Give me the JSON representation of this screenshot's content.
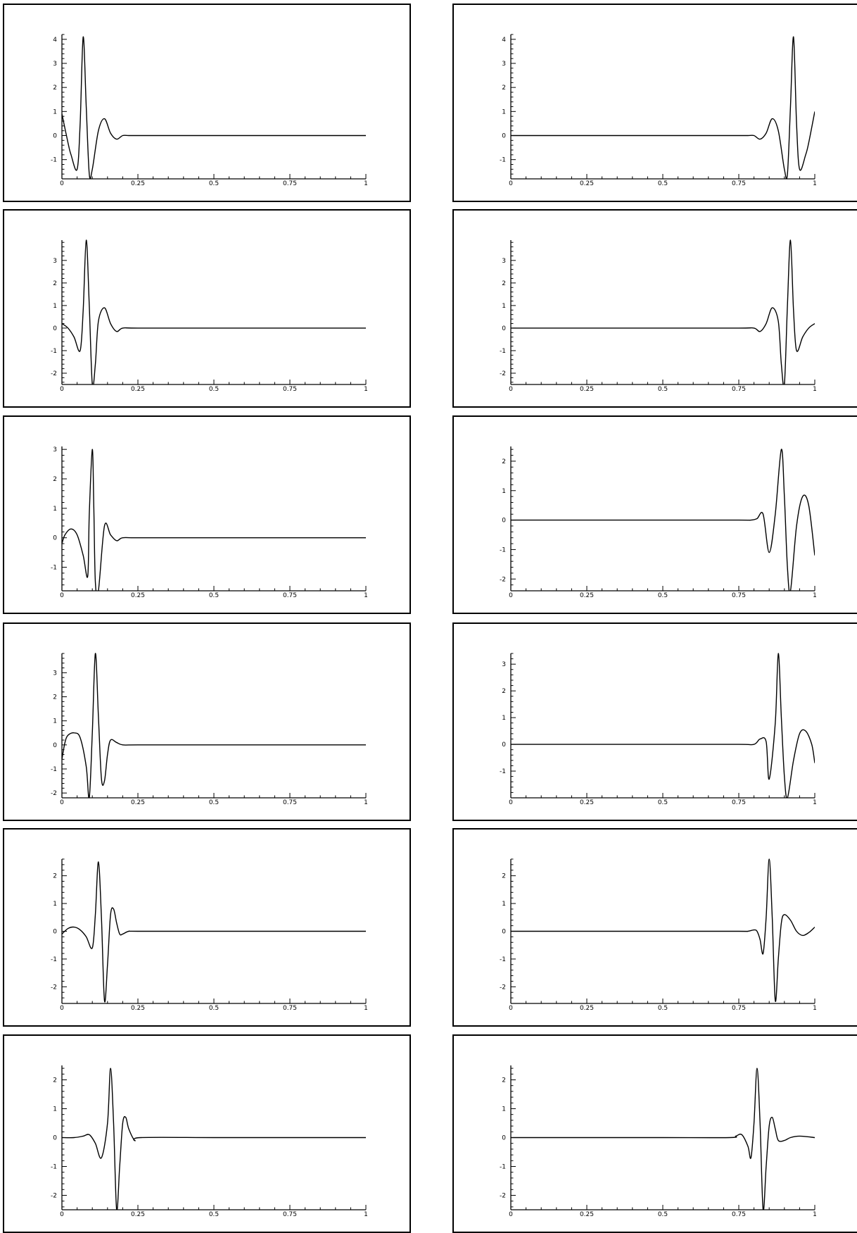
{
  "chart_data": [
    {
      "type": "line",
      "panel": "left-1",
      "xlim": [
        0,
        1
      ],
      "ylim": [
        -1.8,
        4.2
      ],
      "x_ticks": [
        "0",
        "0.25",
        "0.5",
        "0.75",
        "1"
      ],
      "y_ticks": [
        "-1",
        "0",
        "1",
        "2",
        "3",
        "4"
      ],
      "series": [
        {
          "x": [
            0,
            0.02,
            0.03,
            0.05,
            0.06,
            0.07,
            0.08,
            0.09,
            0.1,
            0.12,
            0.14,
            0.16,
            0.18,
            0.2,
            0.22,
            0.25,
            0.5,
            0.75,
            1
          ],
          "y": [
            0.9,
            -0.3,
            -0.8,
            -1.4,
            0.5,
            4.1,
            1.2,
            -1.6,
            -1.4,
            0.2,
            0.7,
            0.1,
            -0.15,
            0.0,
            0.0,
            0.0,
            0.0,
            0.0,
            0.0
          ]
        }
      ]
    },
    {
      "type": "line",
      "panel": "right-1",
      "xlim": [
        0,
        1
      ],
      "ylim": [
        -1.8,
        4.2
      ],
      "x_ticks": [
        "0",
        "0.25",
        "0.5",
        "0.75",
        "1"
      ],
      "y_ticks": [
        "-1",
        "0",
        "1",
        "2",
        "3",
        "4"
      ],
      "series": [
        {
          "x": [
            0,
            0.25,
            0.5,
            0.75,
            0.78,
            0.8,
            0.82,
            0.84,
            0.86,
            0.88,
            0.9,
            0.91,
            0.92,
            0.93,
            0.94,
            0.95,
            0.97,
            0.98,
            1
          ],
          "y": [
            0.0,
            0.0,
            0.0,
            0.0,
            0.0,
            0.0,
            -0.15,
            0.1,
            0.7,
            0.2,
            -1.4,
            -1.6,
            1.2,
            4.1,
            0.5,
            -1.4,
            -0.8,
            -0.3,
            1.0
          ]
        }
      ]
    },
    {
      "type": "line",
      "panel": "left-2",
      "xlim": [
        0,
        1
      ],
      "ylim": [
        -2.5,
        3.9
      ],
      "x_ticks": [
        "0",
        "0.25",
        "0.5",
        "0.75",
        "1"
      ],
      "y_ticks": [
        "-2",
        "-1",
        "0",
        "1",
        "2",
        "3"
      ],
      "series": [
        {
          "x": [
            0,
            0.02,
            0.04,
            0.06,
            0.07,
            0.08,
            0.09,
            0.1,
            0.11,
            0.12,
            0.14,
            0.16,
            0.18,
            0.2,
            0.25,
            0.5,
            0.75,
            1
          ],
          "y": [
            0.2,
            0.0,
            -0.4,
            -1.0,
            0.8,
            3.9,
            1.0,
            -2.5,
            -1.6,
            0.3,
            0.9,
            0.2,
            -0.15,
            0.0,
            0.0,
            0.0,
            0.0,
            0.0
          ]
        }
      ]
    },
    {
      "type": "line",
      "panel": "right-2",
      "xlim": [
        0,
        1
      ],
      "ylim": [
        -2.5,
        3.9
      ],
      "x_ticks": [
        "0",
        "0.25",
        "0.5",
        "0.75",
        "1"
      ],
      "y_ticks": [
        "-2",
        "-1",
        "0",
        "1",
        "2",
        "3"
      ],
      "series": [
        {
          "x": [
            0,
            0.25,
            0.5,
            0.75,
            0.8,
            0.82,
            0.84,
            0.86,
            0.88,
            0.89,
            0.9,
            0.91,
            0.92,
            0.93,
            0.94,
            0.96,
            0.98,
            1
          ],
          "y": [
            0.0,
            0.0,
            0.0,
            0.0,
            0.0,
            -0.15,
            0.2,
            0.9,
            0.3,
            -1.6,
            -2.5,
            1.0,
            3.9,
            0.8,
            -1.0,
            -0.4,
            0.0,
            0.2
          ]
        }
      ]
    },
    {
      "type": "line",
      "panel": "left-3",
      "xlim": [
        0,
        1
      ],
      "ylim": [
        -1.8,
        3.1
      ],
      "x_ticks": [
        "0",
        "0.25",
        "0.5",
        "0.75",
        "1"
      ],
      "y_ticks": [
        "-1",
        "0",
        "1",
        "2",
        "3"
      ],
      "series": [
        {
          "x": [
            0,
            0.01,
            0.03,
            0.05,
            0.07,
            0.085,
            0.09,
            0.1,
            0.105,
            0.11,
            0.12,
            0.14,
            0.16,
            0.18,
            0.2,
            0.25,
            0.5,
            0.75,
            1
          ],
          "y": [
            -0.2,
            0.1,
            0.3,
            0.1,
            -0.6,
            -1.3,
            0.8,
            3.0,
            1.0,
            -1.5,
            -1.8,
            0.4,
            0.1,
            -0.1,
            0.0,
            0.0,
            0.0,
            0.0,
            0.0
          ]
        }
      ]
    },
    {
      "type": "line",
      "panel": "right-3",
      "xlim": [
        0,
        1
      ],
      "ylim": [
        -2.4,
        2.5
      ],
      "x_ticks": [
        "0",
        "0.25",
        "0.5",
        "0.75",
        "1"
      ],
      "y_ticks": [
        "-2",
        "-1",
        "0",
        "1",
        "2"
      ],
      "series": [
        {
          "x": [
            0,
            0.25,
            0.5,
            0.75,
            0.79,
            0.81,
            0.83,
            0.85,
            0.87,
            0.89,
            0.9,
            0.91,
            0.92,
            0.94,
            0.96,
            0.98,
            1
          ],
          "y": [
            0.0,
            0.0,
            0.0,
            0.0,
            0.0,
            0.05,
            0.2,
            -1.1,
            0.2,
            2.4,
            0.8,
            -1.6,
            -2.4,
            -0.2,
            0.8,
            0.5,
            -1.2
          ]
        }
      ]
    },
    {
      "type": "line",
      "panel": "left-4",
      "xlim": [
        0,
        1
      ],
      "ylim": [
        -2.2,
        3.8
      ],
      "x_ticks": [
        "0",
        "0.25",
        "0.5",
        "0.75",
        "1"
      ],
      "y_ticks": [
        "-2",
        "-1",
        "0",
        "1",
        "2",
        "3"
      ],
      "series": [
        {
          "x": [
            0,
            0.01,
            0.02,
            0.04,
            0.06,
            0.08,
            0.09,
            0.1,
            0.11,
            0.12,
            0.13,
            0.14,
            0.15,
            0.16,
            0.18,
            0.2,
            0.25,
            0.5,
            0.75,
            1
          ],
          "y": [
            -0.6,
            0.1,
            0.4,
            0.5,
            0.3,
            -0.9,
            -2.2,
            0.5,
            3.8,
            1.2,
            -1.4,
            -1.5,
            -0.4,
            0.2,
            0.1,
            0.0,
            0.0,
            0.0,
            0.0,
            0.0
          ]
        }
      ]
    },
    {
      "type": "line",
      "panel": "right-4",
      "xlim": [
        0,
        1
      ],
      "ylim": [
        -2.0,
        3.4
      ],
      "x_ticks": [
        "0",
        "0.25",
        "0.5",
        "0.75",
        "1"
      ],
      "y_ticks": [
        "-1",
        "0",
        "1",
        "2",
        "3"
      ],
      "series": [
        {
          "x": [
            0,
            0.25,
            0.5,
            0.75,
            0.8,
            0.82,
            0.84,
            0.85,
            0.87,
            0.88,
            0.89,
            0.9,
            0.91,
            0.93,
            0.95,
            0.97,
            0.99,
            1
          ],
          "y": [
            0.0,
            0.0,
            0.0,
            0.0,
            0.0,
            0.2,
            0.1,
            -1.3,
            0.8,
            3.4,
            1.0,
            -1.2,
            -2.0,
            -0.6,
            0.4,
            0.5,
            0.0,
            -0.7
          ]
        }
      ]
    },
    {
      "type": "line",
      "panel": "left-5",
      "xlim": [
        0,
        1
      ],
      "ylim": [
        -2.6,
        2.6
      ],
      "x_ticks": [
        "0",
        "0.25",
        "0.5",
        "0.75",
        "1"
      ],
      "y_ticks": [
        "-2",
        "-1",
        "0",
        "1",
        "2"
      ],
      "series": [
        {
          "x": [
            0,
            0.02,
            0.04,
            0.06,
            0.08,
            0.1,
            0.11,
            0.12,
            0.13,
            0.14,
            0.15,
            0.16,
            0.17,
            0.18,
            0.19,
            0.2,
            0.22,
            0.25,
            0.5,
            0.75,
            1
          ],
          "y": [
            -0.1,
            0.1,
            0.15,
            0.05,
            -0.2,
            -0.6,
            0.6,
            2.5,
            0.5,
            -2.5,
            -1.2,
            0.6,
            0.8,
            0.3,
            -0.1,
            -0.1,
            0.0,
            0.0,
            0.0,
            0.0,
            0.0
          ]
        }
      ]
    },
    {
      "type": "line",
      "panel": "right-5",
      "xlim": [
        0,
        1
      ],
      "ylim": [
        -2.6,
        2.6
      ],
      "x_ticks": [
        "0",
        "0.25",
        "0.5",
        "0.75",
        "1"
      ],
      "y_ticks": [
        "-2",
        "-1",
        "0",
        "1",
        "2"
      ],
      "series": [
        {
          "x": [
            0,
            0.25,
            0.5,
            0.75,
            0.78,
            0.8,
            0.81,
            0.82,
            0.83,
            0.84,
            0.85,
            0.86,
            0.87,
            0.88,
            0.89,
            0.9,
            0.92,
            0.94,
            0.96,
            0.98,
            1
          ],
          "y": [
            0.0,
            0.0,
            0.0,
            0.0,
            0.0,
            0.05,
            0.0,
            -0.3,
            -0.8,
            0.5,
            2.6,
            0.5,
            -2.5,
            -1.0,
            0.3,
            0.6,
            0.4,
            0.0,
            -0.15,
            -0.05,
            0.15
          ]
        }
      ]
    },
    {
      "type": "line",
      "panel": "left-6",
      "xlim": [
        0,
        1
      ],
      "ylim": [
        -2.5,
        2.5
      ],
      "x_ticks": [
        "0",
        "0.25",
        "0.5",
        "0.75",
        "1"
      ],
      "y_ticks": [
        "-2",
        "-1",
        "0",
        "1",
        "2"
      ],
      "series": [
        {
          "x": [
            0,
            0.04,
            0.07,
            0.09,
            0.11,
            0.13,
            0.15,
            0.16,
            0.17,
            0.18,
            0.19,
            0.2,
            0.21,
            0.22,
            0.24,
            0.26,
            0.5,
            0.75,
            1
          ],
          "y": [
            0.0,
            0.0,
            0.05,
            0.1,
            -0.2,
            -0.7,
            0.5,
            2.4,
            0.5,
            -2.5,
            -1.0,
            0.5,
            0.7,
            0.3,
            -0.1,
            0.0,
            0.0,
            0.0,
            0.0
          ]
        }
      ]
    },
    {
      "type": "line",
      "panel": "right-6",
      "xlim": [
        0,
        1
      ],
      "ylim": [
        -2.5,
        2.5
      ],
      "x_ticks": [
        "0",
        "0.25",
        "0.5",
        "0.75",
        "1"
      ],
      "y_ticks": [
        "-2",
        "-1",
        "0",
        "1",
        "2"
      ],
      "series": [
        {
          "x": [
            0,
            0.25,
            0.5,
            0.72,
            0.74,
            0.76,
            0.78,
            0.79,
            0.8,
            0.81,
            0.82,
            0.83,
            0.84,
            0.85,
            0.86,
            0.87,
            0.88,
            0.9,
            0.92,
            0.95,
            1
          ],
          "y": [
            0.0,
            0.0,
            0.0,
            0.0,
            0.05,
            0.1,
            -0.3,
            -0.7,
            0.5,
            2.4,
            0.5,
            -2.5,
            -1.0,
            0.4,
            0.7,
            0.3,
            -0.1,
            -0.1,
            0.0,
            0.05,
            0.0
          ]
        }
      ]
    }
  ]
}
